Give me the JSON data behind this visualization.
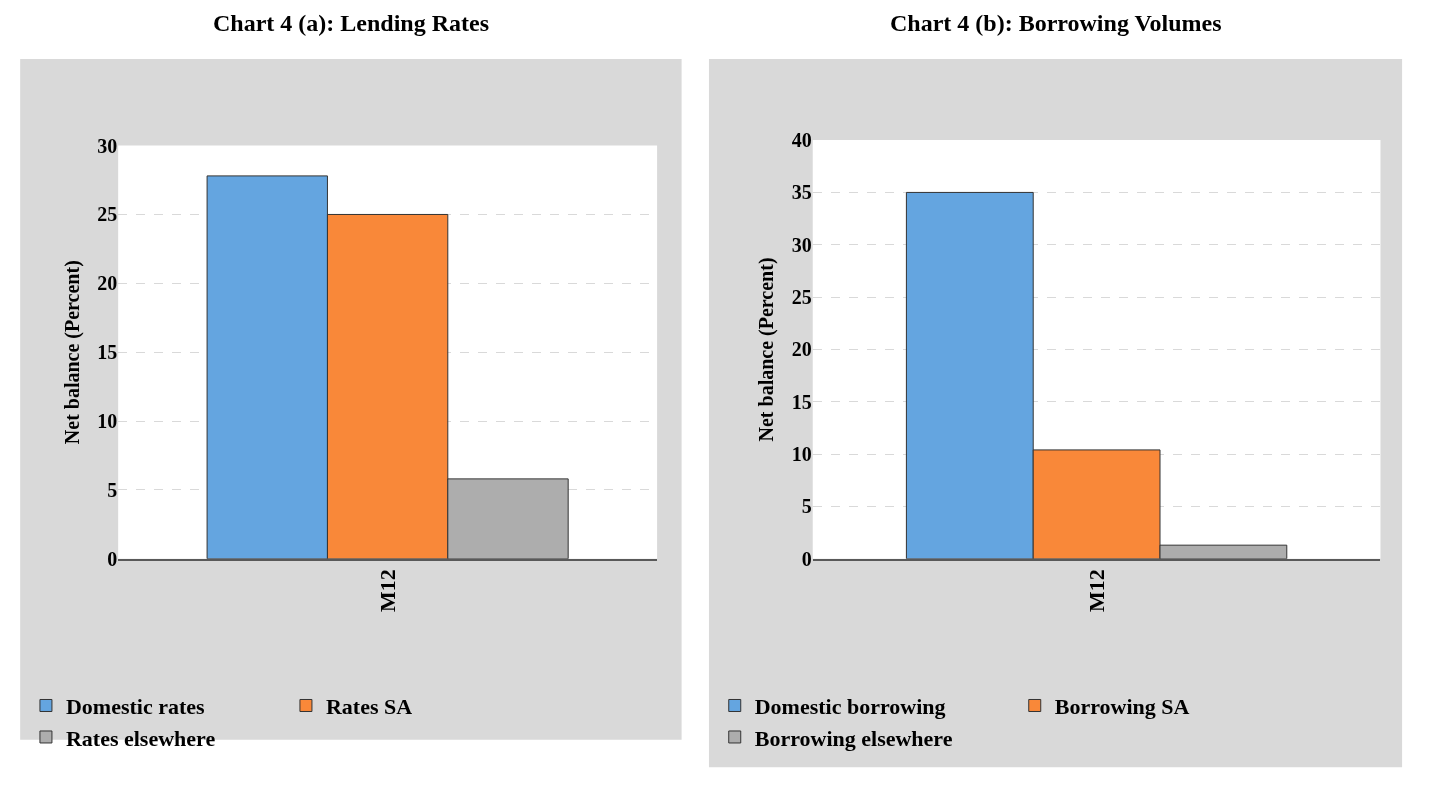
{
  "chart_data": [
    {
      "type": "bar",
      "title": "Chart 4 (a): Lending Rates",
      "ylabel": "Net balance (Percent)",
      "categories": [
        "M12"
      ],
      "series": [
        {
          "name": "Domestic rates",
          "color": "#64a5e0",
          "values": [
            27.8
          ]
        },
        {
          "name": "Rates SA",
          "color": "#f98839",
          "values": [
            25
          ]
        },
        {
          "name": "Rates elsewhere",
          "color": "#adadad",
          "values": [
            5.8
          ]
        }
      ],
      "ylim": [
        0,
        30
      ],
      "yticks": [
        0,
        5,
        10,
        15,
        20,
        25,
        30
      ],
      "grid": "y",
      "legend": "bottom"
    },
    {
      "type": "bar",
      "title": "Chart 4 (b): Borrowing Volumes",
      "ylabel": "Net balance (Percent)",
      "categories": [
        "M12"
      ],
      "series": [
        {
          "name": "Domestic borrowing",
          "color": "#64a5e0",
          "values": [
            35
          ]
        },
        {
          "name": "Borrowing SA",
          "color": "#f98839",
          "values": [
            10.4
          ]
        },
        {
          "name": "Borrowing elsewhere",
          "color": "#adadad",
          "values": [
            1.3
          ]
        }
      ],
      "ylim": [
        0,
        40
      ],
      "yticks": [
        0,
        5,
        10,
        15,
        20,
        25,
        30,
        35,
        40
      ],
      "grid": "y",
      "legend": "bottom"
    }
  ]
}
